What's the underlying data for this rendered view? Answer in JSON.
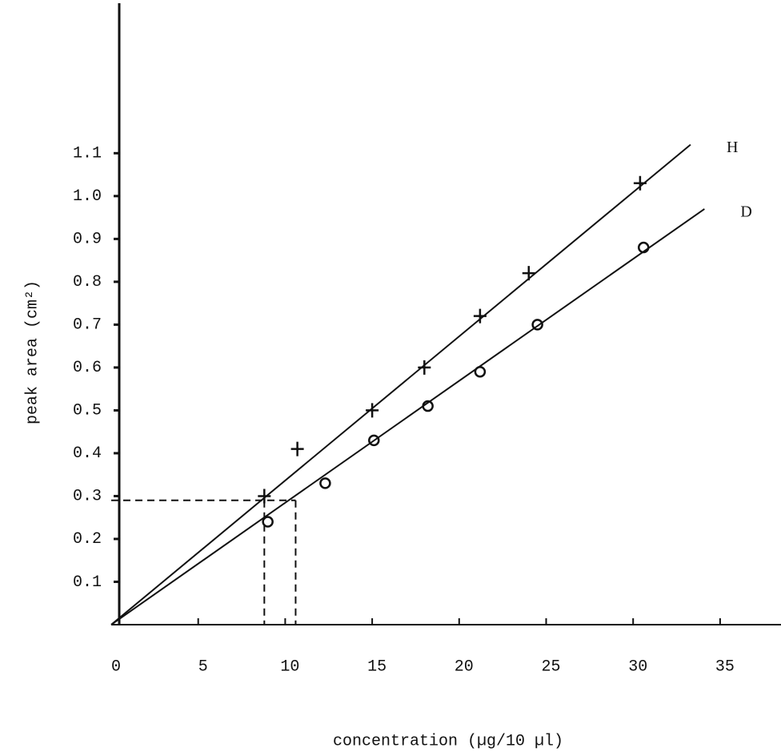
{
  "chart_data": {
    "type": "scatter",
    "x_label": "concentration (µg/10 µl)",
    "y_label": "peak area (cm²)",
    "xlim": [
      0,
      38.5
    ],
    "ylim": [
      0,
      1.45
    ],
    "xticks": [
      0,
      5,
      10,
      15,
      20,
      25,
      30,
      35
    ],
    "yticks": [
      0.1,
      0.2,
      0.3,
      0.4,
      0.5,
      0.6,
      0.7,
      0.8,
      0.9,
      {
        "value": 1,
        "label": "1.0"
      },
      1.1
    ],
    "color": "#111111",
    "series": [
      {
        "name": "H",
        "marker": "plus",
        "x": [
          8.8,
          10.7,
          15.0,
          18.0,
          21.2,
          24.0,
          30.4
        ],
        "values": [
          0.3,
          0.41,
          0.5,
          0.6,
          0.72,
          0.82,
          1.03
        ],
        "fit_x": [
          0,
          33.3
        ],
        "fit_y": [
          0,
          1.12
        ]
      },
      {
        "name": "D",
        "marker": "circle",
        "x": [
          9.0,
          12.3,
          15.1,
          18.2,
          21.2,
          24.5,
          30.6
        ],
        "values": [
          0.24,
          0.33,
          0.43,
          0.51,
          0.59,
          0.7,
          0.88
        ],
        "fit_x": [
          0,
          34.1
        ],
        "fit_y": [
          0,
          0.97
        ]
      }
    ],
    "reference": {
      "y": 0.29,
      "x": [
        8.8,
        10.6
      ]
    }
  }
}
